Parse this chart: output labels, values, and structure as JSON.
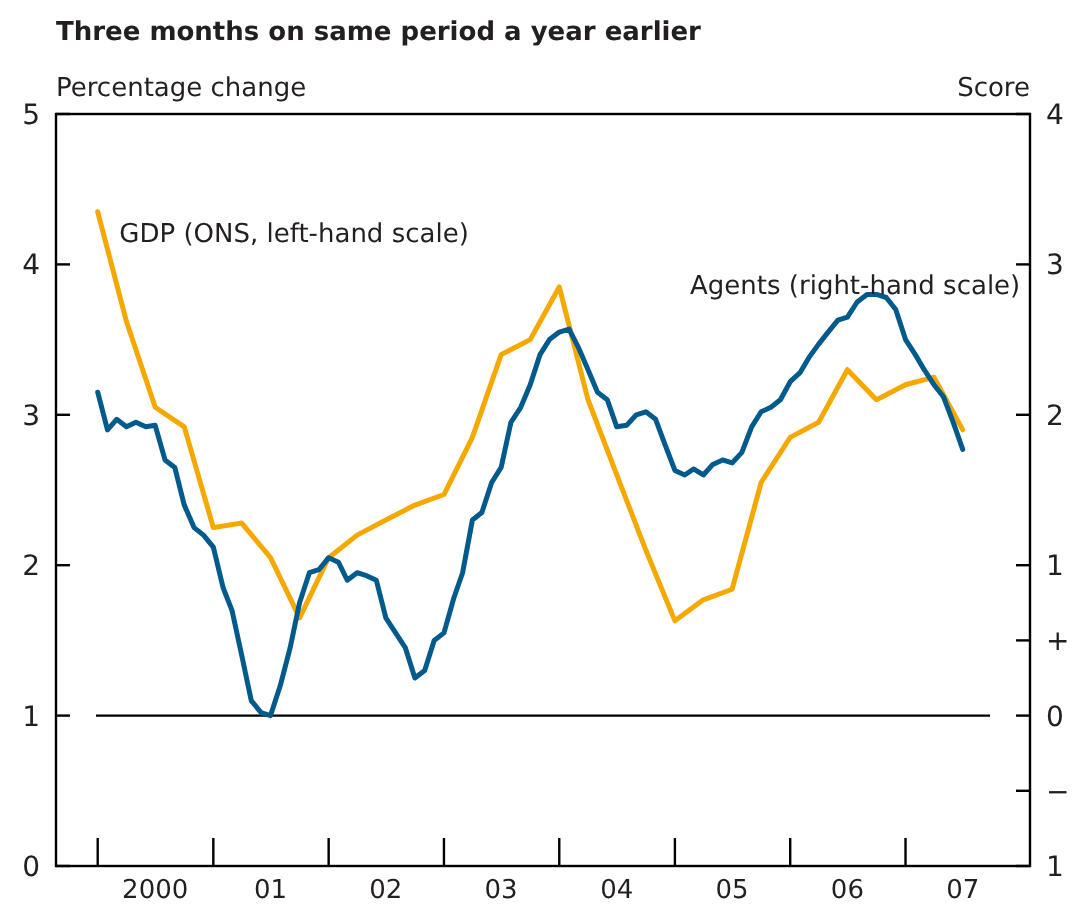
{
  "chart_data": {
    "type": "line",
    "title": "Three months on same period a year earlier",
    "ylabel": "Percentage change",
    "y2label": "Score",
    "xlim": [
      "1999-08-22",
      "2008-01-30"
    ],
    "xticks": [
      {
        "value": "2000-01-01",
        "label": null
      },
      {
        "value": "2000-07-01",
        "label": "2000"
      },
      {
        "value": "2001-01-01",
        "label": null
      },
      {
        "value": "2001-07-01",
        "label": "01"
      },
      {
        "value": "2002-01-01",
        "label": null
      },
      {
        "value": "2002-07-01",
        "label": "02"
      },
      {
        "value": "2003-01-01",
        "label": null
      },
      {
        "value": "2003-07-01",
        "label": "03"
      },
      {
        "value": "2004-01-01",
        "label": null
      },
      {
        "value": "2004-07-01",
        "label": "04"
      },
      {
        "value": "2005-01-01",
        "label": null
      },
      {
        "value": "2005-07-01",
        "label": "05"
      },
      {
        "value": "2006-01-01",
        "label": null
      },
      {
        "value": "2006-07-01",
        "label": "06"
      },
      {
        "value": "2007-01-01",
        "label": null
      },
      {
        "value": "2007-07-01",
        "label": "07"
      }
    ],
    "ylim": [
      0,
      5
    ],
    "yticks": [
      0,
      1,
      2,
      3,
      4,
      5
    ],
    "y2lim": [
      -1,
      4
    ],
    "y2ticks": [
      4,
      3,
      2,
      1,
      {
        "value": 0.5,
        "label": "+"
      },
      0,
      {
        "value": -0.5,
        "label": "−"
      },
      {
        "value": -1,
        "label": "1"
      }
    ],
    "grid": false,
    "legend": false,
    "ref_lines": [
      {
        "axis": "y",
        "value": 1,
        "color": "#000000"
      }
    ],
    "series": [
      {
        "name": "GDP (ONS, left-hand scale)",
        "color": "#f5a800",
        "x": [
          "2000-01",
          "2000-04",
          "2000-07",
          "2000-10",
          "2001-01",
          "2001-04",
          "2001-07",
          "2001-10",
          "2002-01",
          "2002-04",
          "2002-07",
          "2002-10",
          "2003-01",
          "2003-04",
          "2003-07",
          "2003-10",
          "2004-01",
          "2004-04",
          "2004-07",
          "2004-10",
          "2005-01",
          "2005-04",
          "2005-07",
          "2005-10",
          "2006-01",
          "2006-04",
          "2006-07",
          "2006-10",
          "2007-01",
          "2007-04",
          "2007-07"
        ],
        "values": [
          4.35,
          3.62,
          3.05,
          2.92,
          2.25,
          2.28,
          2.05,
          1.65,
          2.05,
          2.2,
          2.3,
          2.4,
          2.47,
          2.85,
          3.4,
          3.5,
          3.85,
          3.1,
          2.6,
          2.1,
          1.63,
          1.77,
          1.84,
          2.55,
          2.85,
          2.95,
          3.3,
          3.1,
          3.2,
          3.25,
          2.9
        ]
      },
      {
        "name": "Agents (right-hand scale)",
        "color": "#005a8c",
        "axis": "y2",
        "x": [
          "2000-01",
          "2000-02",
          "2000-03",
          "2000-04",
          "2000-05",
          "2000-06",
          "2000-07",
          "2000-08",
          "2000-09",
          "2000-10",
          "2000-11",
          "2000-12",
          "2001-01",
          "2001-02",
          "2001-03",
          "2001-04",
          "2001-05",
          "2001-06",
          "2001-07",
          "2001-08",
          "2001-09",
          "2001-10",
          "2001-11",
          "2001-12",
          "2002-01",
          "2002-02",
          "2002-03",
          "2002-04",
          "2002-05",
          "2002-06",
          "2002-07",
          "2002-08",
          "2002-09",
          "2002-10",
          "2002-11",
          "2002-12",
          "2003-01",
          "2003-02",
          "2003-03",
          "2003-04",
          "2003-05",
          "2003-06",
          "2003-07",
          "2003-08",
          "2003-09",
          "2003-10",
          "2003-11",
          "2003-12",
          "2004-01",
          "2004-02",
          "2004-03",
          "2004-04",
          "2004-05",
          "2004-06",
          "2004-07",
          "2004-08",
          "2004-09",
          "2004-10",
          "2004-11",
          "2004-12",
          "2005-01",
          "2005-02",
          "2005-03",
          "2005-04",
          "2005-05",
          "2005-06",
          "2005-07",
          "2005-08",
          "2005-09",
          "2005-10",
          "2005-11",
          "2005-12",
          "2006-01",
          "2006-02",
          "2006-03",
          "2006-04",
          "2006-05",
          "2006-06",
          "2006-07",
          "2006-08",
          "2006-09",
          "2006-10",
          "2006-11",
          "2006-12",
          "2007-01",
          "2007-02",
          "2007-03",
          "2007-04",
          "2007-05",
          "2007-06",
          "2007-07"
        ],
        "values": [
          2.15,
          1.9,
          1.97,
          1.92,
          1.95,
          1.92,
          1.93,
          1.7,
          1.65,
          1.4,
          1.25,
          1.2,
          1.12,
          0.85,
          0.7,
          0.4,
          0.1,
          0.02,
          0,
          0.2,
          0.45,
          0.75,
          0.95,
          0.97,
          1.05,
          1.02,
          0.9,
          0.95,
          0.93,
          0.9,
          0.65,
          0.55,
          0.45,
          0.25,
          0.3,
          0.5,
          0.55,
          0.78,
          0.95,
          1.3,
          1.35,
          1.55,
          1.65,
          1.95,
          2.05,
          2.2,
          2.4,
          2.5,
          2.55,
          2.57,
          2.45,
          2.3,
          2.15,
          2.1,
          1.92,
          1.93,
          2,
          2.02,
          1.97,
          1.8,
          1.63,
          1.6,
          1.64,
          1.6,
          1.67,
          1.7,
          1.68,
          1.75,
          1.92,
          2.02,
          2.05,
          2.1,
          2.22,
          2.28,
          2.38,
          2.47,
          2.55,
          2.63,
          2.65,
          2.75,
          2.8,
          2.8,
          2.78,
          2.7,
          2.5,
          2.4,
          2.3,
          2.2,
          2.12,
          1.95,
          1.77
        ]
      }
    ]
  }
}
